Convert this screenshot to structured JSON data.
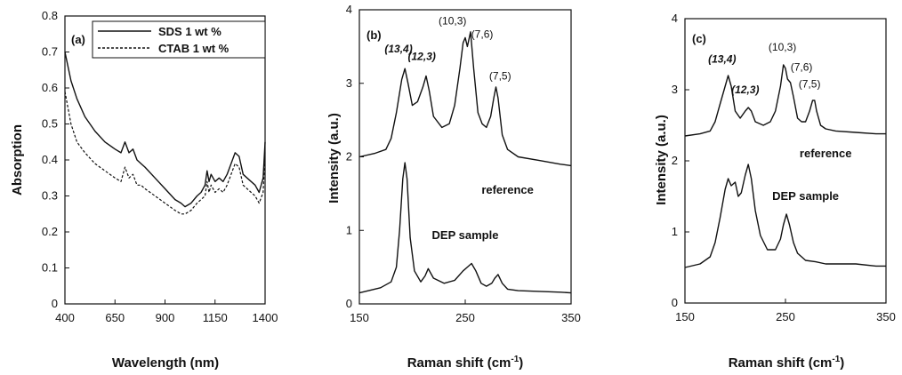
{
  "chart_data": [
    {
      "type": "line",
      "panel_label": "(a)",
      "xlabel": "Wavelength (nm)",
      "ylabel": "Absorption",
      "xlim": [
        400,
        1400
      ],
      "ylim": [
        0,
        0.8
      ],
      "xticks": [
        "400",
        "650",
        "900",
        "1150",
        "1400"
      ],
      "yticks": [
        "0",
        "0.1",
        "0.2",
        "0.3",
        "0.4",
        "0.5",
        "0.6",
        "0.7",
        "0.8"
      ],
      "legend": {
        "placement": "top-right",
        "entries": [
          "SDS 1 wt %",
          "CTAB 1 wt %"
        ]
      },
      "series": [
        {
          "name": "SDS 1 wt %",
          "style": "solid",
          "x": [
            400,
            430,
            460,
            500,
            550,
            600,
            650,
            680,
            700,
            720,
            740,
            760,
            780,
            800,
            850,
            900,
            950,
            980,
            1000,
            1030,
            1060,
            1080,
            1100,
            1110,
            1120,
            1130,
            1150,
            1170,
            1190,
            1210,
            1230,
            1250,
            1270,
            1290,
            1310,
            1330,
            1350,
            1370,
            1390,
            1400
          ],
          "y": [
            0.7,
            0.62,
            0.57,
            0.52,
            0.48,
            0.45,
            0.43,
            0.42,
            0.45,
            0.42,
            0.43,
            0.4,
            0.39,
            0.38,
            0.35,
            0.32,
            0.29,
            0.28,
            0.27,
            0.28,
            0.3,
            0.31,
            0.33,
            0.37,
            0.34,
            0.36,
            0.34,
            0.35,
            0.34,
            0.36,
            0.39,
            0.42,
            0.41,
            0.36,
            0.35,
            0.34,
            0.33,
            0.31,
            0.35,
            0.45
          ]
        },
        {
          "name": "CTAB 1 wt %",
          "style": "dashed",
          "x": [
            400,
            430,
            460,
            500,
            550,
            600,
            650,
            680,
            700,
            720,
            740,
            760,
            780,
            800,
            850,
            900,
            950,
            980,
            1000,
            1030,
            1060,
            1080,
            1100,
            1110,
            1120,
            1130,
            1150,
            1170,
            1190,
            1210,
            1230,
            1250,
            1270,
            1290,
            1310,
            1330,
            1350,
            1370,
            1390,
            1400
          ],
          "y": [
            0.59,
            0.5,
            0.45,
            0.42,
            0.39,
            0.37,
            0.35,
            0.34,
            0.38,
            0.35,
            0.36,
            0.33,
            0.33,
            0.32,
            0.3,
            0.28,
            0.26,
            0.25,
            0.25,
            0.26,
            0.28,
            0.29,
            0.3,
            0.34,
            0.31,
            0.33,
            0.31,
            0.32,
            0.31,
            0.33,
            0.36,
            0.39,
            0.38,
            0.33,
            0.32,
            0.31,
            0.3,
            0.28,
            0.31,
            0.42
          ]
        }
      ]
    },
    {
      "type": "line",
      "panel_label": "(b)",
      "xlabel": "Raman shift (cm",
      "xlabel_sup": "-1",
      "xlabel_end": ")",
      "ylabel": "Intensity (a.u.)",
      "xlim": [
        150,
        350
      ],
      "ylim": [
        0,
        4
      ],
      "xticks": [
        "150",
        "250",
        "350"
      ],
      "yticks": [
        "0",
        "1",
        "2",
        "3",
        "4"
      ],
      "annotations": [
        {
          "text": "(13,4)",
          "x": 187,
          "y": 3.42,
          "style": "bold-italic"
        },
        {
          "text": "(12,3)",
          "x": 209,
          "y": 3.32,
          "style": "bold-italic"
        },
        {
          "text": "(10,3)",
          "x": 238,
          "y": 3.8,
          "style": "normal"
        },
        {
          "text": "(7,6)",
          "x": 266,
          "y": 3.62,
          "style": "normal"
        },
        {
          "text": "(7,5)",
          "x": 283,
          "y": 3.05,
          "style": "normal"
        },
        {
          "text": "reference",
          "x": 290,
          "y": 1.5,
          "style": "bold"
        },
        {
          "text": "DEP sample",
          "x": 250,
          "y": 0.88,
          "style": "bold"
        }
      ],
      "series": [
        {
          "name": "reference",
          "x": [
            150,
            165,
            175,
            180,
            185,
            190,
            193,
            196,
            200,
            205,
            210,
            213,
            216,
            220,
            228,
            235,
            240,
            245,
            248,
            250,
            252,
            255,
            258,
            262,
            266,
            270,
            274,
            277,
            279,
            281,
            285,
            290,
            300,
            320,
            340,
            350
          ],
          "y": [
            2.0,
            2.05,
            2.1,
            2.25,
            2.6,
            3.05,
            3.2,
            3.0,
            2.7,
            2.75,
            2.95,
            3.1,
            2.9,
            2.55,
            2.4,
            2.45,
            2.7,
            3.2,
            3.55,
            3.62,
            3.5,
            3.7,
            3.2,
            2.6,
            2.45,
            2.4,
            2.55,
            2.8,
            2.95,
            2.8,
            2.3,
            2.1,
            2.0,
            1.95,
            1.9,
            1.88
          ]
        },
        {
          "name": "DEP sample",
          "x": [
            150,
            170,
            180,
            185,
            188,
            191,
            193,
            195,
            198,
            202,
            208,
            212,
            215,
            220,
            230,
            240,
            248,
            252,
            256,
            260,
            265,
            270,
            275,
            278,
            281,
            285,
            290,
            300,
            320,
            340,
            350
          ],
          "y": [
            0.15,
            0.22,
            0.3,
            0.5,
            1.0,
            1.7,
            1.92,
            1.7,
            0.9,
            0.45,
            0.3,
            0.38,
            0.48,
            0.35,
            0.28,
            0.32,
            0.45,
            0.5,
            0.55,
            0.45,
            0.28,
            0.24,
            0.28,
            0.35,
            0.4,
            0.28,
            0.2,
            0.18,
            0.17,
            0.16,
            0.15
          ]
        }
      ]
    },
    {
      "type": "line",
      "panel_label": "(c)",
      "xlabel": "Raman shift (cm",
      "xlabel_sup": "-1",
      "xlabel_end": ")",
      "ylabel": "Intensity (a.u.)",
      "xlim": [
        150,
        350
      ],
      "ylim": [
        0,
        4
      ],
      "xticks": [
        "150",
        "250",
        "350"
      ],
      "yticks": [
        "0",
        "1",
        "2",
        "3",
        "4"
      ],
      "annotations": [
        {
          "text": "(13,4)",
          "x": 187,
          "y": 3.38,
          "style": "bold-italic"
        },
        {
          "text": "(12,3)",
          "x": 210,
          "y": 2.95,
          "style": "bold-italic"
        },
        {
          "text": "(10,3)",
          "x": 247,
          "y": 3.55,
          "style": "normal"
        },
        {
          "text": "(7,6)",
          "x": 266,
          "y": 3.27,
          "style": "normal"
        },
        {
          "text": "(7,5)",
          "x": 274,
          "y": 3.03,
          "style": "normal"
        },
        {
          "text": "reference",
          "x": 290,
          "y": 2.05,
          "style": "bold"
        },
        {
          "text": "DEP sample",
          "x": 270,
          "y": 1.45,
          "style": "bold"
        }
      ],
      "series": [
        {
          "name": "reference",
          "x": [
            150,
            165,
            175,
            180,
            185,
            190,
            193,
            196,
            200,
            205,
            210,
            213,
            216,
            220,
            228,
            235,
            240,
            245,
            248,
            250,
            252,
            255,
            258,
            262,
            266,
            270,
            274,
            277,
            279,
            281,
            285,
            290,
            300,
            320,
            340,
            350
          ],
          "y": [
            2.35,
            2.38,
            2.42,
            2.55,
            2.8,
            3.05,
            3.2,
            3.05,
            2.7,
            2.6,
            2.7,
            2.75,
            2.7,
            2.55,
            2.5,
            2.55,
            2.7,
            3.05,
            3.35,
            3.3,
            3.15,
            3.1,
            2.9,
            2.6,
            2.55,
            2.55,
            2.7,
            2.85,
            2.85,
            2.7,
            2.5,
            2.45,
            2.42,
            2.4,
            2.38,
            2.38
          ]
        },
        {
          "name": "DEP sample",
          "x": [
            150,
            165,
            175,
            180,
            185,
            190,
            193,
            196,
            200,
            203,
            206,
            210,
            213,
            216,
            220,
            225,
            232,
            240,
            245,
            248,
            251,
            254,
            258,
            262,
            270,
            280,
            290,
            300,
            320,
            340,
            350
          ],
          "y": [
            0.5,
            0.55,
            0.65,
            0.85,
            1.2,
            1.6,
            1.75,
            1.65,
            1.7,
            1.5,
            1.55,
            1.8,
            1.95,
            1.75,
            1.3,
            0.95,
            0.75,
            0.75,
            0.9,
            1.1,
            1.25,
            1.1,
            0.85,
            0.7,
            0.6,
            0.58,
            0.55,
            0.55,
            0.55,
            0.52,
            0.52
          ]
        }
      ]
    }
  ]
}
